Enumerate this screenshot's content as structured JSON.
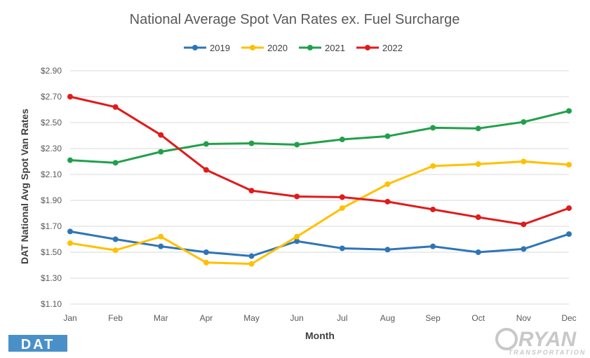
{
  "chart_data": {
    "type": "line",
    "title": "National Average Spot Van Rates ex. Fuel Surcharge",
    "xlabel": "Month",
    "ylabel": "DAT National Avg Spot Van Rates",
    "categories": [
      "Jan",
      "Feb",
      "Mar",
      "Apr",
      "May",
      "Jun",
      "Jul",
      "Aug",
      "Sep",
      "Oct",
      "Nov",
      "Dec"
    ],
    "ylim": [
      1.1,
      2.9
    ],
    "yticks": [
      "$1.10",
      "$1.30",
      "$1.50",
      "$1.70",
      "$1.90",
      "$2.10",
      "$2.30",
      "$2.50",
      "$2.70",
      "$2.90"
    ],
    "ytick_values": [
      1.1,
      1.3,
      1.5,
      1.7,
      1.9,
      2.1,
      2.3,
      2.5,
      2.7,
      2.9
    ],
    "grid": "horizontal",
    "legend_position": "top",
    "series": [
      {
        "name": "2019",
        "color": "#2e75b6",
        "values": [
          1.66,
          1.6,
          1.545,
          1.5,
          1.47,
          1.585,
          1.53,
          1.52,
          1.545,
          1.5,
          1.525,
          1.64
        ]
      },
      {
        "name": "2020",
        "color": "#ffc000",
        "values": [
          1.57,
          1.515,
          1.62,
          1.42,
          1.41,
          1.62,
          1.84,
          2.025,
          2.165,
          2.18,
          2.2,
          2.175
        ]
      },
      {
        "name": "2021",
        "color": "#21a04a",
        "values": [
          2.21,
          2.19,
          2.275,
          2.335,
          2.34,
          2.33,
          2.37,
          2.395,
          2.46,
          2.455,
          2.505,
          2.59
        ]
      },
      {
        "name": "2022",
        "color": "#e01b1b",
        "values": [
          2.7,
          2.62,
          2.405,
          2.135,
          1.975,
          1.93,
          1.925,
          1.89,
          1.83,
          1.77,
          1.715,
          1.84
        ]
      }
    ]
  },
  "logos": {
    "dat": "DAT",
    "ryan": "RYAN",
    "ryan_sub": "TRANSPORTATION"
  }
}
